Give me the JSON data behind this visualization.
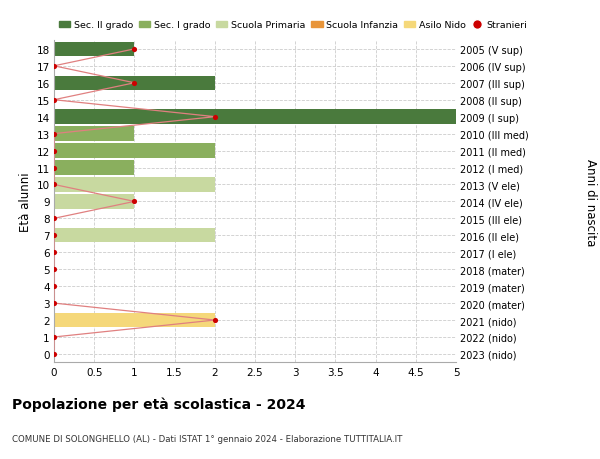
{
  "ages": [
    0,
    1,
    2,
    3,
    4,
    5,
    6,
    7,
    8,
    9,
    10,
    11,
    12,
    13,
    14,
    15,
    16,
    17,
    18
  ],
  "right_labels": [
    "2023 (nido)",
    "2022 (nido)",
    "2021 (nido)",
    "2020 (mater)",
    "2019 (mater)",
    "2018 (mater)",
    "2017 (I ele)",
    "2016 (II ele)",
    "2015 (III ele)",
    "2014 (IV ele)",
    "2013 (V ele)",
    "2012 (I med)",
    "2011 (II med)",
    "2010 (III med)",
    "2009 (I sup)",
    "2008 (II sup)",
    "2007 (III sup)",
    "2006 (IV sup)",
    "2005 (V sup)"
  ],
  "bar_values": [
    0,
    0,
    2,
    0,
    0,
    0,
    0,
    2,
    0,
    1,
    2,
    1,
    2,
    1,
    5,
    0,
    2,
    0,
    1
  ],
  "bar_colors": [
    "#f5d87a",
    "#f5d87a",
    "#f5d87a",
    "#e8953a",
    "#e8953a",
    "#e8953a",
    "#c8d9a0",
    "#c8d9a0",
    "#c8d9a0",
    "#c8d9a0",
    "#c8d9a0",
    "#8aaf5e",
    "#8aaf5e",
    "#8aaf5e",
    "#4a7a3d",
    "#4a7a3d",
    "#4a7a3d",
    "#4a7a3d",
    "#4a7a3d"
  ],
  "stranieri_values": [
    0,
    0,
    2,
    0,
    0,
    0,
    0,
    0,
    0,
    1,
    0,
    0,
    0,
    0,
    2,
    0,
    1,
    0,
    1
  ],
  "stranieri_color": "#cc0000",
  "stranieri_line_color": "#e08080",
  "xlim": [
    0,
    5.0
  ],
  "xticks": [
    0,
    0.5,
    1.0,
    1.5,
    2.0,
    2.5,
    3.0,
    3.5,
    4.0,
    4.5,
    5.0
  ],
  "ylabel_left": "Età alunni",
  "ylabel_right": "Anni di nascita",
  "title": "Popolazione per età scolastica - 2024",
  "subtitle": "COMUNE DI SOLONGHELLO (AL) - Dati ISTAT 1° gennaio 2024 - Elaborazione TUTTITALIA.IT",
  "legend_labels": [
    "Sec. II grado",
    "Sec. I grado",
    "Scuola Primaria",
    "Scuola Infanzia",
    "Asilo Nido",
    "Stranieri"
  ],
  "legend_colors": [
    "#4a7a3d",
    "#8aaf5e",
    "#c8d9a0",
    "#e8953a",
    "#f5d87a",
    "#cc0000"
  ],
  "background_color": "#ffffff",
  "grid_color": "#cccccc"
}
